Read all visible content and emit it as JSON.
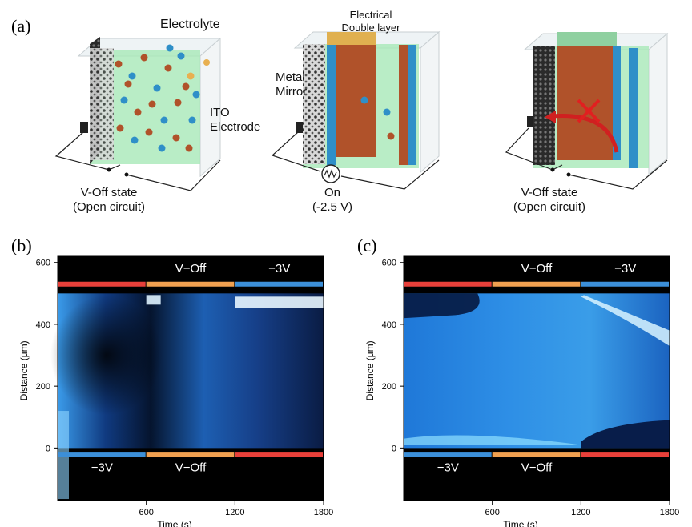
{
  "panel_a": {
    "letter": "(a)",
    "electrolyte": "Electrolyte",
    "ito_electrode": [
      "ITO",
      "Electrode"
    ],
    "edl": [
      "Electrical",
      "Double layer"
    ],
    "metal_mirror": [
      "Metal",
      "Mirror"
    ],
    "state_left": [
      "V-Off state",
      "(Open circuit)"
    ],
    "state_mid": [
      "On",
      "(-2.5 V)"
    ],
    "state_right": [
      "V-Off state",
      "(Open circuit)"
    ]
  },
  "colors": {
    "cation": "#2f8fc8",
    "anion": "#b0522a",
    "green_gel": "#9fe6b2",
    "red_bar": "#e8403a",
    "orange_bar": "#f0a050",
    "blue_bar": "#3c8fd8",
    "plot_bg": "#000000",
    "glow": "#5ab8ff"
  },
  "chart_data": [
    {
      "panel": "(b)",
      "type": "heatmap",
      "xlabel": "Time (s)",
      "ylabel": "Distance (μm)",
      "xticks": [
        "600",
        "1200",
        "1800"
      ],
      "yticks": [
        "0",
        "200",
        "400",
        "600"
      ],
      "xlim": [
        0,
        1800
      ],
      "ylim": [
        -170,
        620
      ],
      "top_segments": [
        {
          "label": "",
          "start": 0,
          "end": 600,
          "color": "red"
        },
        {
          "label": "V−Off",
          "start": 600,
          "end": 1200,
          "color": "orange"
        },
        {
          "label": "−3V",
          "start": 1200,
          "end": 1800,
          "color": "blue"
        }
      ],
      "bottom_segments": [
        {
          "label": "−3V",
          "start": 0,
          "end": 600,
          "color": "blue"
        },
        {
          "label": "V−Off",
          "start": 600,
          "end": 1200,
          "color": "orange"
        },
        {
          "label": "",
          "start": 1200,
          "end": 1800,
          "color": "red"
        }
      ]
    },
    {
      "panel": "(c)",
      "type": "heatmap",
      "xlabel": "Time (s)",
      "ylabel": "Distance (μm)",
      "xticks": [
        "600",
        "1200",
        "1800"
      ],
      "yticks": [
        "0",
        "200",
        "400",
        "600"
      ],
      "xlim": [
        0,
        1800
      ],
      "ylim": [
        -170,
        620
      ],
      "top_segments": [
        {
          "label": "",
          "start": 0,
          "end": 600,
          "color": "red"
        },
        {
          "label": "V−Off",
          "start": 600,
          "end": 1200,
          "color": "orange"
        },
        {
          "label": "−3V",
          "start": 1200,
          "end": 1800,
          "color": "blue"
        }
      ],
      "bottom_segments": [
        {
          "label": "−3V",
          "start": 0,
          "end": 600,
          "color": "blue"
        },
        {
          "label": "V−Off",
          "start": 600,
          "end": 1200,
          "color": "orange"
        },
        {
          "label": "",
          "start": 1200,
          "end": 1800,
          "color": "red"
        }
      ]
    }
  ]
}
